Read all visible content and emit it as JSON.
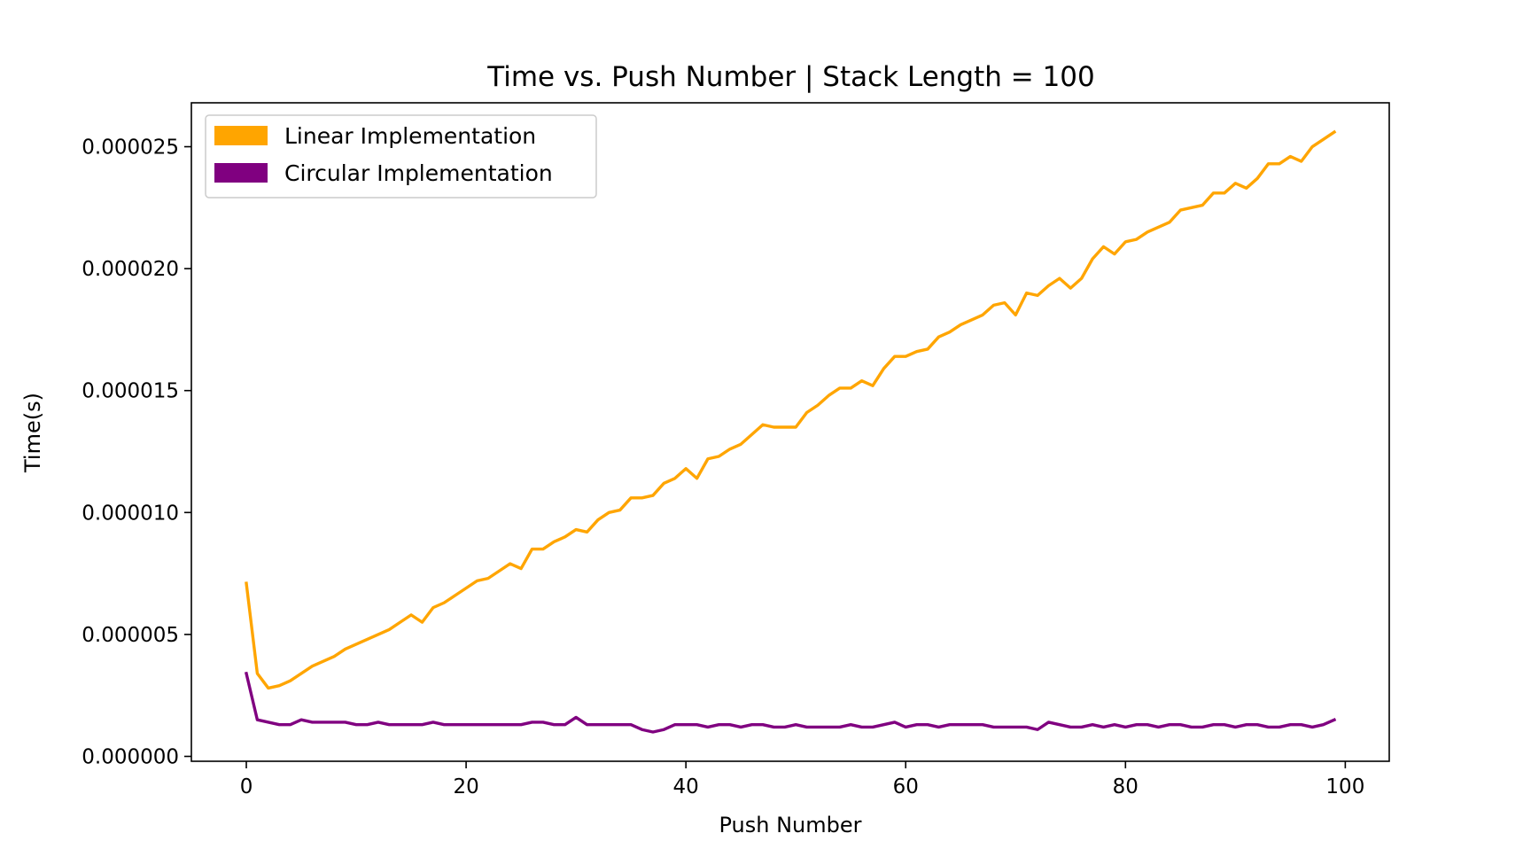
{
  "chart_data": {
    "type": "line",
    "title": "Time vs. Push Number | Stack Length = 100",
    "xlabel": "Push Number",
    "ylabel": "Time(s)",
    "xlim": [
      -5,
      104
    ],
    "ylim": [
      -2e-07,
      2.68e-05
    ],
    "xticks": [
      0,
      20,
      40,
      60,
      80,
      100
    ],
    "yticks": [
      0.0,
      5e-06,
      1e-05,
      1.5e-05,
      2e-05,
      2.5e-05
    ],
    "xtick_labels": [
      "0",
      "20",
      "40",
      "60",
      "80",
      "100"
    ],
    "ytick_labels": [
      "0.000000",
      "0.000005",
      "0.000010",
      "0.000015",
      "0.000020",
      "0.000025"
    ],
    "grid": false,
    "legend": "top-left",
    "series": [
      {
        "name": "Linear Implementation",
        "color": "#FFA500",
        "values": [
          7.1e-06,
          3.4e-06,
          2.8e-06,
          2.9e-06,
          3.1e-06,
          3.4e-06,
          3.7e-06,
          3.9e-06,
          4.1e-06,
          4.4e-06,
          4.6e-06,
          4.8e-06,
          5e-06,
          5.2e-06,
          5.5e-06,
          5.8e-06,
          5.5e-06,
          6.1e-06,
          6.3e-06,
          6.6e-06,
          6.9e-06,
          7.2e-06,
          7.3e-06,
          7.6e-06,
          7.9e-06,
          7.7e-06,
          8.5e-06,
          8.5e-06,
          8.8e-06,
          9e-06,
          9.3e-06,
          9.2e-06,
          9.7e-06,
          1e-05,
          1.01e-05,
          1.06e-05,
          1.06e-05,
          1.07e-05,
          1.12e-05,
          1.14e-05,
          1.18e-05,
          1.14e-05,
          1.22e-05,
          1.23e-05,
          1.26e-05,
          1.28e-05,
          1.32e-05,
          1.36e-05,
          1.35e-05,
          1.35e-05,
          1.35e-05,
          1.41e-05,
          1.44e-05,
          1.48e-05,
          1.51e-05,
          1.51e-05,
          1.54e-05,
          1.52e-05,
          1.59e-05,
          1.64e-05,
          1.64e-05,
          1.66e-05,
          1.67e-05,
          1.72e-05,
          1.74e-05,
          1.77e-05,
          1.79e-05,
          1.81e-05,
          1.85e-05,
          1.86e-05,
          1.81e-05,
          1.9e-05,
          1.89e-05,
          1.93e-05,
          1.96e-05,
          1.92e-05,
          1.96e-05,
          2.04e-05,
          2.09e-05,
          2.06e-05,
          2.11e-05,
          2.12e-05,
          2.15e-05,
          2.17e-05,
          2.19e-05,
          2.24e-05,
          2.25e-05,
          2.26e-05,
          2.31e-05,
          2.31e-05,
          2.35e-05,
          2.33e-05,
          2.37e-05,
          2.43e-05,
          2.43e-05,
          2.46e-05,
          2.44e-05,
          2.5e-05,
          2.53e-05,
          2.56e-05
        ]
      },
      {
        "name": "Circular Implementation",
        "color": "#800080",
        "values": [
          3.4e-06,
          1.5e-06,
          1.4e-06,
          1.3e-06,
          1.3e-06,
          1.5e-06,
          1.4e-06,
          1.4e-06,
          1.4e-06,
          1.4e-06,
          1.3e-06,
          1.3e-06,
          1.4e-06,
          1.3e-06,
          1.3e-06,
          1.3e-06,
          1.3e-06,
          1.4e-06,
          1.3e-06,
          1.3e-06,
          1.3e-06,
          1.3e-06,
          1.3e-06,
          1.3e-06,
          1.3e-06,
          1.3e-06,
          1.4e-06,
          1.4e-06,
          1.3e-06,
          1.3e-06,
          1.6e-06,
          1.3e-06,
          1.3e-06,
          1.3e-06,
          1.3e-06,
          1.3e-06,
          1.1e-06,
          1e-06,
          1.1e-06,
          1.3e-06,
          1.3e-06,
          1.3e-06,
          1.2e-06,
          1.3e-06,
          1.3e-06,
          1.2e-06,
          1.3e-06,
          1.3e-06,
          1.2e-06,
          1.2e-06,
          1.3e-06,
          1.2e-06,
          1.2e-06,
          1.2e-06,
          1.2e-06,
          1.3e-06,
          1.2e-06,
          1.2e-06,
          1.3e-06,
          1.4e-06,
          1.2e-06,
          1.3e-06,
          1.3e-06,
          1.2e-06,
          1.3e-06,
          1.3e-06,
          1.3e-06,
          1.3e-06,
          1.2e-06,
          1.2e-06,
          1.2e-06,
          1.2e-06,
          1.1e-06,
          1.4e-06,
          1.3e-06,
          1.2e-06,
          1.2e-06,
          1.3e-06,
          1.2e-06,
          1.3e-06,
          1.2e-06,
          1.3e-06,
          1.3e-06,
          1.2e-06,
          1.3e-06,
          1.3e-06,
          1.2e-06,
          1.2e-06,
          1.3e-06,
          1.3e-06,
          1.2e-06,
          1.3e-06,
          1.3e-06,
          1.2e-06,
          1.2e-06,
          1.3e-06,
          1.3e-06,
          1.2e-06,
          1.3e-06,
          1.5e-06
        ]
      }
    ]
  }
}
